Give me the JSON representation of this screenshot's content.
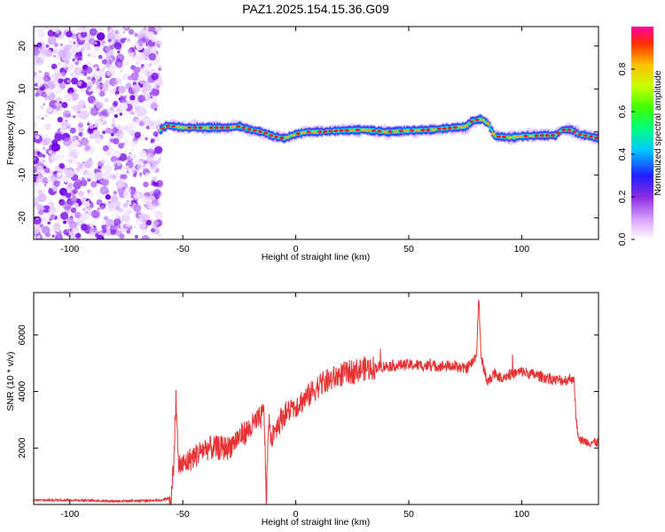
{
  "title": "PAZ1.2025.154.15.36.G09",
  "chart_data": [
    {
      "type": "heatmap",
      "xlabel": "Height of straight line (km)",
      "ylabel": "Frequency (Hz)",
      "xlim": [
        -116,
        134
      ],
      "ylim": [
        -25,
        24.5
      ],
      "xticks": [
        -100,
        -50,
        0,
        50,
        100
      ],
      "yticks": [
        -20,
        -10,
        0,
        10,
        20
      ],
      "noise_region_x": [
        -116,
        -60
      ],
      "ridge": {
        "x": [
          -60,
          -57,
          -50,
          -40,
          -30,
          -25,
          -20,
          -15,
          -10,
          -5,
          0,
          5,
          10,
          20,
          30,
          40,
          50,
          60,
          70,
          75,
          78,
          82,
          85,
          88,
          95,
          100,
          110,
          115,
          118,
          122,
          125,
          130,
          134
        ],
        "freq": [
          0.5,
          1.5,
          1.0,
          1.0,
          1.0,
          1.3,
          0.5,
          0.0,
          -1.0,
          -1.5,
          -0.5,
          0.0,
          0.0,
          0.3,
          0.5,
          0.0,
          0.3,
          0.5,
          1.0,
          1.2,
          2.5,
          3.0,
          2.0,
          -1.0,
          -1.3,
          -1.0,
          -0.8,
          -0.8,
          0.5,
          0.5,
          -0.5,
          -1.0,
          -1.5
        ]
      },
      "colorbar": {
        "label": "Normalized spectral amplitude",
        "ticks": [
          0.0,
          0.2,
          0.4,
          0.6,
          0.8
        ],
        "range": [
          0,
          1
        ]
      }
    },
    {
      "type": "line",
      "xlabel": "Height of straight line (km)",
      "ylabel": "SNR (10 * v/v)",
      "xlim": [
        -116,
        134
      ],
      "ylim": [
        0,
        7500
      ],
      "xticks": [
        -100,
        -50,
        0,
        50,
        100
      ],
      "yticks": [
        2000,
        4000,
        6000
      ],
      "color": "#e63232",
      "series": [
        {
          "x": [
            -116,
            -100,
            -80,
            -60,
            -55,
            -54,
            -53,
            -52,
            -50,
            -45,
            -40,
            -35,
            -30,
            -25,
            -20,
            -18,
            -16,
            -14,
            -13,
            -12,
            -11,
            -10,
            -5,
            0,
            5,
            10,
            20,
            30,
            40,
            50,
            60,
            70,
            75,
            78,
            80,
            81,
            82,
            83,
            85,
            88,
            90,
            95,
            100,
            110,
            115,
            120,
            123,
            124,
            125,
            130,
            134
          ],
          "y": [
            150,
            160,
            120,
            150,
            250,
            1500,
            3800,
            1400,
            1400,
            1700,
            2000,
            2000,
            2000,
            2400,
            2700,
            2900,
            3000,
            3300,
            100,
            3100,
            2200,
            2600,
            3200,
            3500,
            3800,
            4200,
            4600,
            4800,
            4900,
            4950,
            4900,
            4900,
            4800,
            5000,
            5300,
            7400,
            5200,
            4900,
            4300,
            4700,
            4500,
            4600,
            4700,
            4500,
            4400,
            4400,
            4500,
            3200,
            2300,
            2200,
            2200
          ]
        }
      ],
      "noise_amplitude": 200
    }
  ]
}
